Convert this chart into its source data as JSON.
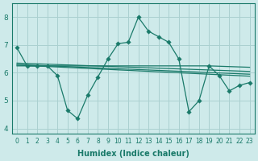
{
  "xlabel": "Humidex (Indice chaleur)",
  "xlim": [
    -0.5,
    23.5
  ],
  "ylim": [
    3.8,
    8.5
  ],
  "yticks": [
    4,
    5,
    6,
    7,
    8
  ],
  "xticks": [
    0,
    1,
    2,
    3,
    4,
    5,
    6,
    7,
    8,
    9,
    10,
    11,
    12,
    13,
    14,
    15,
    16,
    17,
    18,
    19,
    20,
    21,
    22,
    23
  ],
  "bg_color": "#ceeaea",
  "grid_color": "#aad0d0",
  "line_color": "#1a7a6a",
  "line1": [
    6.9,
    6.25,
    6.25,
    6.25,
    5.9,
    4.65,
    4.35,
    5.2,
    5.85,
    6.5,
    7.05,
    7.1,
    8.0,
    7.5,
    7.3,
    7.1,
    6.5,
    4.6,
    5.0,
    6.25,
    5.9,
    5.35,
    5.55,
    5.65
  ],
  "line2_x": [
    0,
    3,
    19,
    23
  ],
  "line2_y": [
    6.25,
    6.25,
    6.25,
    6.2
  ],
  "line3_x": [
    0,
    23
  ],
  "line3_y": [
    6.35,
    6.05
  ],
  "line4_x": [
    0,
    23
  ],
  "line4_y": [
    6.3,
    5.95
  ],
  "line5_x": [
    0,
    23
  ],
  "line5_y": [
    6.28,
    5.88
  ]
}
